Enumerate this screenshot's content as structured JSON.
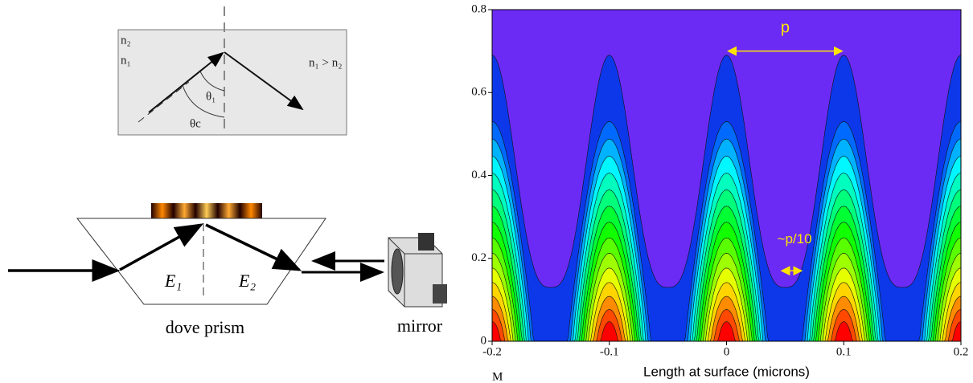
{
  "diagram": {
    "tir": {
      "n2": "n₂",
      "n1": "n₁",
      "relation": "n₁ > n₂",
      "theta1": "θ₁",
      "thetac": "θc"
    },
    "prism": {
      "e1": "E₁",
      "e2": "E₂",
      "caption": "dove prism",
      "mirror": "mirror"
    }
  },
  "chart_data": {
    "type": "contour",
    "xlabel": "Length at surface (microns)",
    "xlim": [
      -0.2,
      0.2
    ],
    "ylim": [
      0,
      0.8
    ],
    "xticks": [
      -0.2,
      -0.1,
      0,
      0.1,
      0.2
    ],
    "yticks": [
      0,
      0.2,
      0.4,
      0.6,
      0.8
    ],
    "annotations": [
      "p",
      "~p/10"
    ],
    "corner_label": "M",
    "background": "#6b2bf5"
  }
}
